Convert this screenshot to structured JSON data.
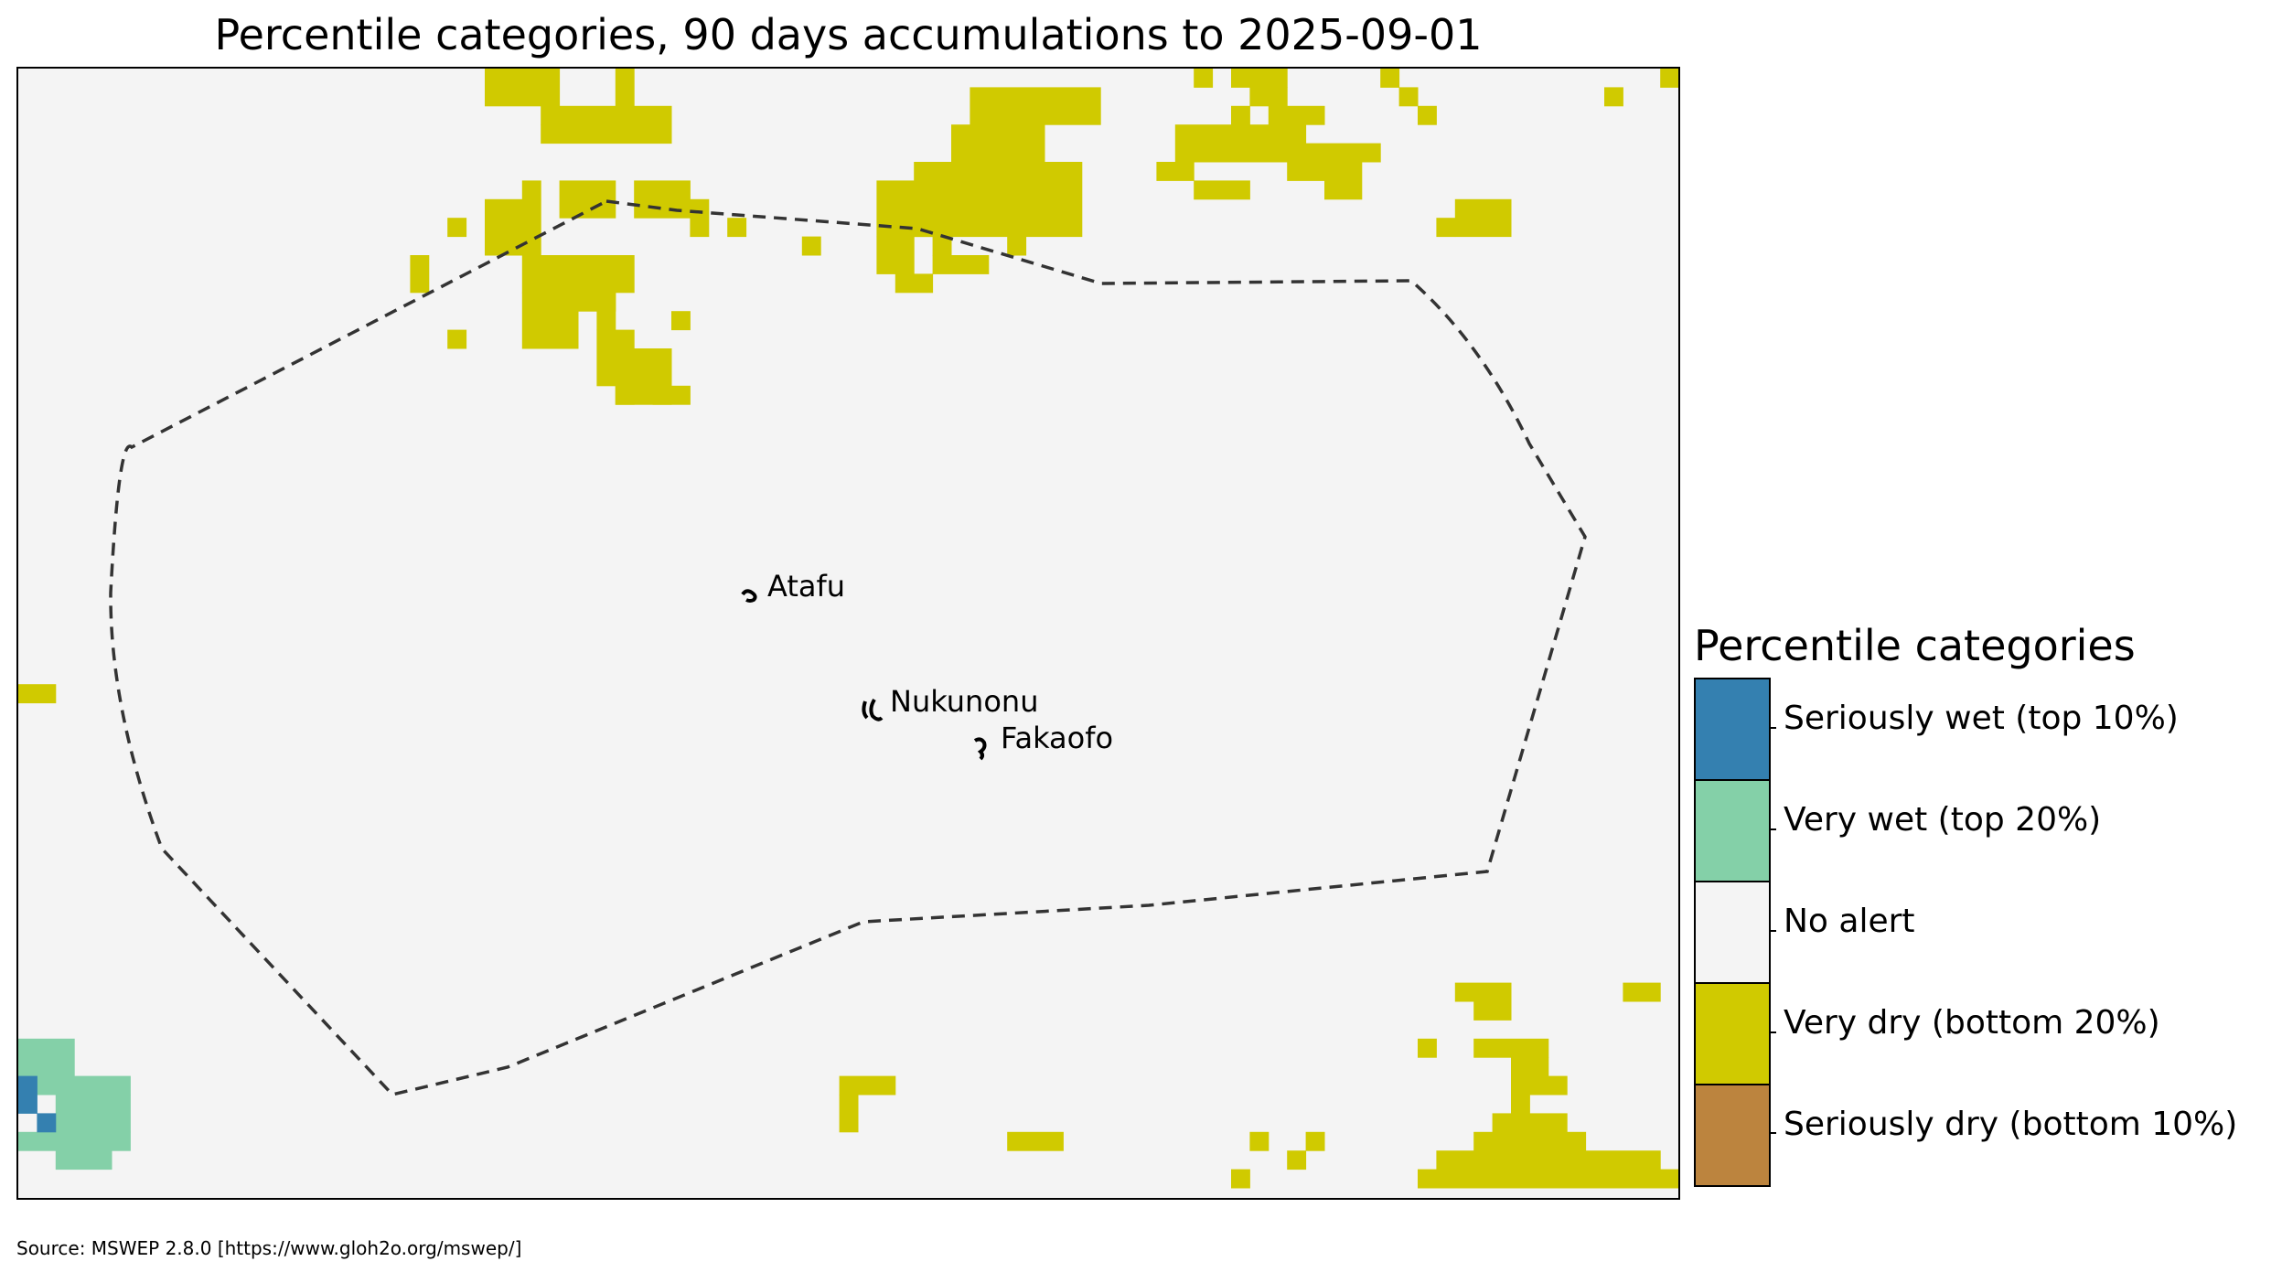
{
  "title": "Percentile categories, 90 days accumulations to 2025-09-01",
  "source": "Source: MSWEP 2.8.0 [https://www.gloh2o.org/mswep/]",
  "colors": {
    "background": "#f4f4f4",
    "seriously_wet": "#3480b0",
    "very_wet": "#84d0a8",
    "no_alert": "#f4f4f4",
    "very_dry": "#d0ca00",
    "seriously_dry": "#bc843e",
    "boundary": "#333333",
    "atoll": "#000000"
  },
  "legend": {
    "title": "Percentile categories",
    "items": [
      {
        "label": "Seriously wet (top 10%)",
        "color": "#3480b0"
      },
      {
        "label": "Very wet (top 20%)",
        "color": "#84d0a8"
      },
      {
        "label": "No alert",
        "color": "#f4f4f4"
      },
      {
        "label": "Very dry (bottom 20%)",
        "color": "#d0ca00"
      },
      {
        "label": "Seriously dry (bottom 10%)",
        "color": "#bc843e"
      }
    ]
  },
  "places": [
    {
      "name": "Atafu"
    },
    {
      "name": "Nukunonu"
    },
    {
      "name": "Fakaofo"
    }
  ]
}
